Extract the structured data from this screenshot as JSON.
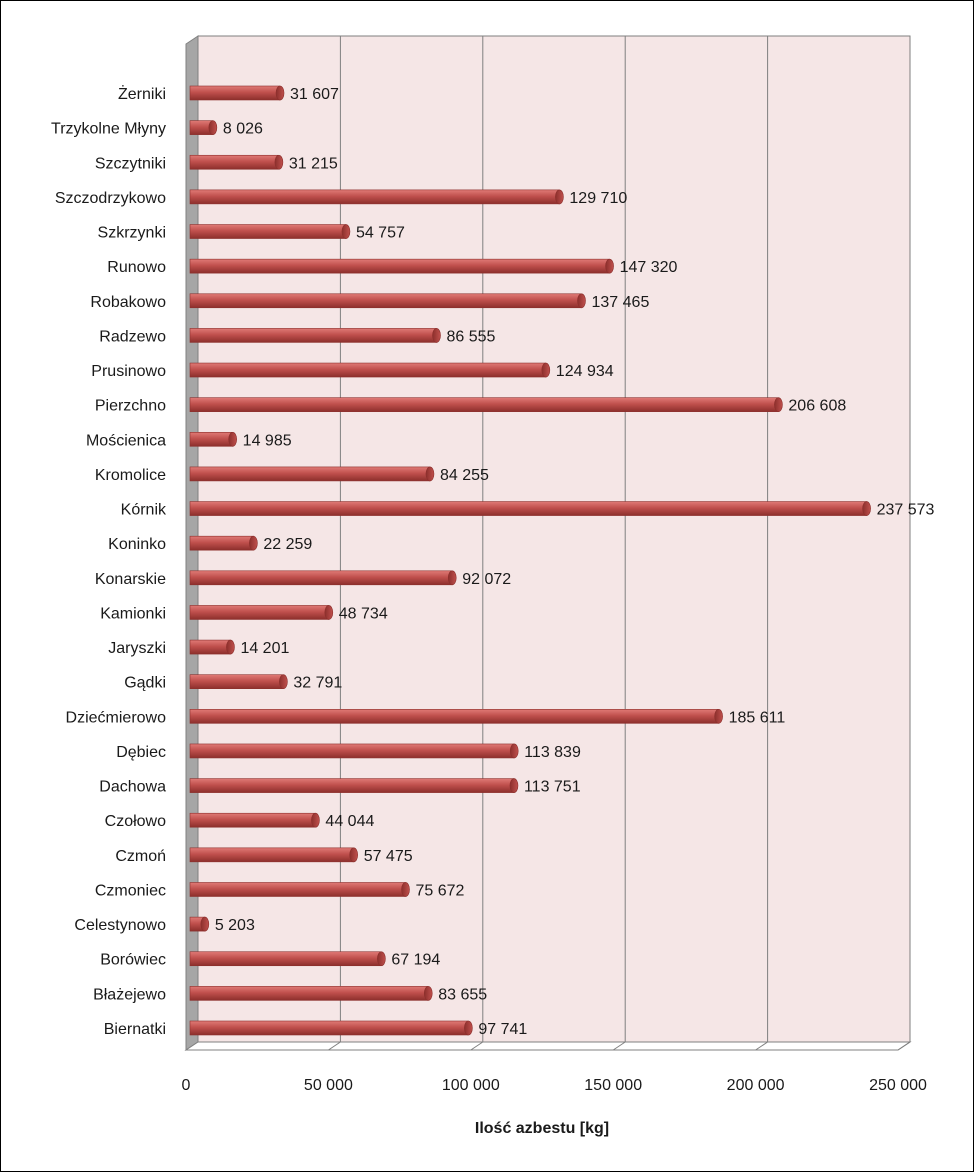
{
  "chart_data": {
    "type": "bar",
    "orientation": "horizontal",
    "title": "",
    "xlabel": "Ilość azbestu [kg]",
    "ylabel": "",
    "xlim": [
      0,
      250000
    ],
    "xticks": [
      0,
      50000,
      100000,
      150000,
      200000,
      250000
    ],
    "xtick_labels": [
      "0",
      "50 000",
      "100 000",
      "150 000",
      "200 000",
      "250 000"
    ],
    "grid": true,
    "legend": "none",
    "colors": {
      "bar": "#c0504d",
      "bar_light": "#e07a76",
      "bar_dark": "#8c2f2c",
      "plot_bg": "#f5e6e6",
      "grid": "#7f7f7f",
      "wall_side": "#a6a6a6"
    },
    "categories": [
      "Żerniki",
      "Trzykolne Młyny",
      "Szczytniki",
      "Szczodrzykowo",
      "Szkrzynki",
      "Runowo",
      "Robakowo",
      "Radzewo",
      "Prusinowo",
      "Pierzchno",
      "Mościenica",
      "Kromolice",
      "Kórnik",
      "Koninko",
      "Konarskie",
      "Kamionki",
      "Jaryszki",
      "Gądki",
      "Dziećmierowo",
      "Dębiec",
      "Dachowa",
      "Czołowo",
      "Czmoń",
      "Czmoniec",
      "Celestynowo",
      "Borówiec",
      "Błażejewo",
      "Biernatki"
    ],
    "values": [
      31607,
      8026,
      31215,
      129710,
      54757,
      147320,
      137465,
      86555,
      124934,
      206608,
      14985,
      84255,
      237573,
      22259,
      92072,
      48734,
      14201,
      32791,
      185611,
      113839,
      113751,
      44044,
      57475,
      75672,
      5203,
      67194,
      83655,
      97741
    ],
    "value_labels": [
      "31 607",
      "8 026",
      "31 215",
      "129 710",
      "54 757",
      "147 320",
      "137 465",
      "86 555",
      "124 934",
      "206 608",
      "14 985",
      "84 255",
      "237 573",
      "22 259",
      "92 072",
      "48 734",
      "14 201",
      "32 791",
      "185 611",
      "113 839",
      "113 751",
      "44 044",
      "57 475",
      "75 672",
      "5 203",
      "67 194",
      "83 655",
      "97 741"
    ]
  }
}
